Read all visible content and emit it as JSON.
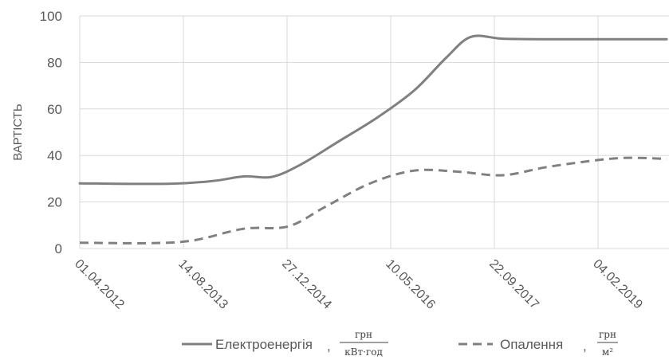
{
  "chart_data": {
    "type": "line",
    "ylabel": "ВАРТІСТЬ",
    "xlabel": "",
    "ylim": [
      0,
      100
    ],
    "y_ticks": [
      0,
      20,
      40,
      60,
      80,
      100
    ],
    "x_tick_labels": [
      "01.04.2012",
      "14.08.2013",
      "27.12.2014",
      "10.05.2016",
      "22.09.2017",
      "04.02.2019"
    ],
    "x_range": [
      "01.04.2012",
      "01.01.2020"
    ],
    "grid": true,
    "legend_position": "bottom",
    "series": [
      {
        "name": "Електроенергія",
        "unit_numerator": "грн",
        "unit_denominator": "кВт·год",
        "color": "#808080",
        "dash": "solid",
        "points": [
          {
            "x": "01.04.2012",
            "y": 28
          },
          {
            "x": "01.06.2013",
            "y": 27.8
          },
          {
            "x": "01.01.2014",
            "y": 29
          },
          {
            "x": "01.06.2014",
            "y": 31
          },
          {
            "x": "15.10.2014",
            "y": 30.8
          },
          {
            "x": "01.03.2015",
            "y": 36
          },
          {
            "x": "01.09.2015",
            "y": 46
          },
          {
            "x": "01.03.2016",
            "y": 56
          },
          {
            "x": "01.09.2016",
            "y": 68
          },
          {
            "x": "01.02.2017",
            "y": 82
          },
          {
            "x": "01.06.2017",
            "y": 91
          },
          {
            "x": "01.11.2017",
            "y": 90.2
          },
          {
            "x": "01.06.2018",
            "y": 90
          },
          {
            "x": "01.01.2020",
            "y": 90
          }
        ]
      },
      {
        "name": "Опалення",
        "unit_numerator": "грн",
        "unit_denominator": "м²",
        "color": "#808080",
        "dash": "dashed",
        "points": [
          {
            "x": "01.04.2012",
            "y": 2.5
          },
          {
            "x": "01.03.2013",
            "y": 2.3
          },
          {
            "x": "01.10.2013",
            "y": 3.5
          },
          {
            "x": "01.06.2014",
            "y": 8.5
          },
          {
            "x": "01.01.2015",
            "y": 9.5
          },
          {
            "x": "01.07.2015",
            "y": 18
          },
          {
            "x": "01.02.2016",
            "y": 28
          },
          {
            "x": "01.09.2016",
            "y": 33.5
          },
          {
            "x": "01.04.2017",
            "y": 33
          },
          {
            "x": "01.11.2017",
            "y": 31.5
          },
          {
            "x": "01.06.2018",
            "y": 35
          },
          {
            "x": "01.02.2019",
            "y": 38
          },
          {
            "x": "01.07.2019",
            "y": 39
          },
          {
            "x": "01.01.2020",
            "y": 38.5
          }
        ]
      }
    ]
  }
}
